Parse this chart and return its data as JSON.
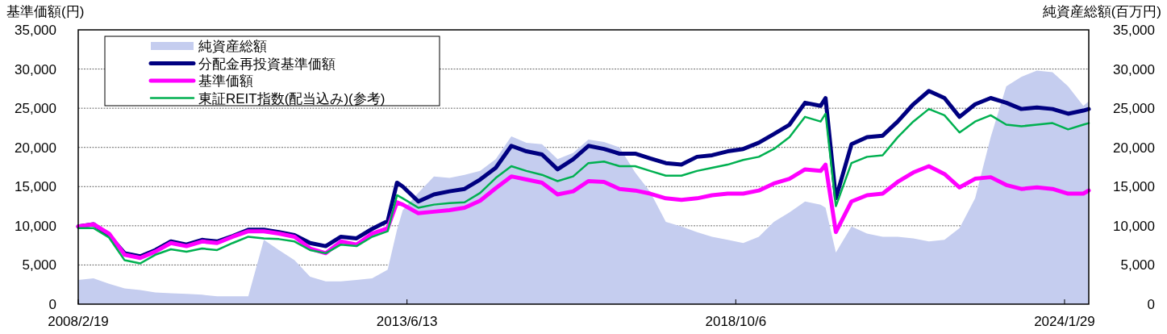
{
  "chart_data": {
    "type": "line",
    "ylabel": "基準価額(円)",
    "y2label": "純資産総額(百万円)",
    "x": [
      "2008-02-19",
      "2008-05-19",
      "2008-08-19",
      "2008-11-19",
      "2009-02-19",
      "2009-05-19",
      "2009-08-19",
      "2009-11-19",
      "2010-02-19",
      "2010-05-19",
      "2010-08-19",
      "2010-11-19",
      "2011-02-19",
      "2011-05-19",
      "2011-08-19",
      "2011-11-19",
      "2012-02-19",
      "2012-05-19",
      "2012-08-19",
      "2012-11-19",
      "2013-02-19",
      "2013-04-15",
      "2013-05-19",
      "2013-08-19",
      "2013-11-19",
      "2014-02-19",
      "2014-05-19",
      "2014-08-19",
      "2014-11-19",
      "2015-02-19",
      "2015-05-19",
      "2015-08-19",
      "2015-11-19",
      "2016-02-19",
      "2016-05-19",
      "2016-08-19",
      "2016-11-19",
      "2017-02-19",
      "2017-05-19",
      "2017-08-19",
      "2017-11-19",
      "2018-02-19",
      "2018-05-19",
      "2018-08-19",
      "2018-11-19",
      "2019-02-19",
      "2019-05-19",
      "2019-08-19",
      "2019-11-19",
      "2020-02-19",
      "2020-03-19",
      "2020-05-19",
      "2020-08-19",
      "2020-11-19",
      "2021-02-19",
      "2021-05-19",
      "2021-08-19",
      "2021-11-19",
      "2022-02-19",
      "2022-05-19",
      "2022-08-19",
      "2022-11-19",
      "2023-02-19",
      "2023-05-19",
      "2023-08-19",
      "2023-11-19",
      "2024-02-19",
      "2024-05-19",
      "2024-06-20"
    ],
    "series": [
      {
        "name": "純資産総額",
        "type": "area",
        "axis": "y2",
        "color": "#c5cdef",
        "values": [
          3100,
          3300,
          2600,
          2000,
          1800,
          1500,
          1400,
          1300,
          1200,
          1000,
          1000,
          1000,
          8200,
          6900,
          5600,
          3500,
          2900,
          2900,
          3100,
          3300,
          4400,
          9500,
          12000,
          14200,
          16300,
          16100,
          16500,
          17000,
          18500,
          21400,
          20600,
          20400,
          18500,
          19300,
          21000,
          20700,
          20000,
          16800,
          14300,
          10500,
          9900,
          9200,
          8600,
          8200,
          7800,
          8600,
          10500,
          11700,
          13100,
          12700,
          12300,
          6600,
          9900,
          9000,
          8600,
          8600,
          8400,
          8000,
          8200,
          9700,
          13500,
          21300,
          27800,
          29000,
          29800,
          29600,
          27800,
          25300,
          25900
        ]
      },
      {
        "name": "分配金再投資基準価額",
        "color": "#000080",
        "values": [
          9900,
          10200,
          8800,
          6500,
          6100,
          6900,
          8000,
          7600,
          8200,
          8000,
          8700,
          9500,
          9500,
          9200,
          8800,
          7800,
          7400,
          8600,
          8400,
          9600,
          10600,
          15500,
          15000,
          13100,
          14000,
          14400,
          14700,
          15900,
          17400,
          20200,
          19500,
          19100,
          17200,
          18500,
          20200,
          19800,
          19200,
          19200,
          18600,
          18000,
          17800,
          18800,
          19000,
          19500,
          19800,
          20600,
          21700,
          22900,
          25700,
          25300,
          26300,
          13500,
          20400,
          21300,
          21500,
          23300,
          25500,
          27200,
          26300,
          23900,
          25500,
          26300,
          25700,
          24900,
          25100,
          24900,
          24300,
          24700,
          24900
        ]
      },
      {
        "name": "基準価額",
        "color": "#ff00ff",
        "values": [
          9900,
          10200,
          9000,
          6300,
          5900,
          6700,
          7800,
          7400,
          8000,
          7800,
          8600,
          9300,
          9300,
          9000,
          8600,
          7100,
          6500,
          8000,
          7600,
          9000,
          9700,
          13000,
          12700,
          11600,
          11800,
          12000,
          12300,
          13200,
          14800,
          16300,
          15900,
          15500,
          14000,
          14400,
          15700,
          15600,
          14700,
          14500,
          14100,
          13500,
          13300,
          13500,
          13900,
          14100,
          14100,
          14500,
          15400,
          16000,
          17200,
          17000,
          17800,
          9200,
          13100,
          13900,
          14100,
          15600,
          16800,
          17600,
          16600,
          14900,
          16000,
          16200,
          15200,
          14700,
          14900,
          14700,
          14100,
          14100,
          14500
        ]
      },
      {
        "name": "東証REIT指数(配当込み)(参考)",
        "color": "#00b050",
        "values": [
          9700,
          9700,
          8500,
          5600,
          5200,
          6300,
          7000,
          6700,
          7100,
          6900,
          7800,
          8600,
          8400,
          8300,
          8000,
          6900,
          6500,
          7600,
          7400,
          8600,
          9300,
          13900,
          13500,
          12300,
          12700,
          12900,
          13000,
          14200,
          16100,
          17600,
          17000,
          16500,
          15700,
          16300,
          18000,
          18200,
          17600,
          17600,
          17000,
          16400,
          16400,
          17000,
          17400,
          17800,
          18400,
          18800,
          19800,
          21300,
          23900,
          23300,
          24300,
          12500,
          18000,
          18800,
          19000,
          21300,
          23300,
          24900,
          24100,
          21900,
          23300,
          24100,
          22900,
          22700,
          22900,
          23100,
          22300,
          22900,
          23100
        ]
      }
    ],
    "xlim": [
      "2008-02-19",
      "2024-06-20"
    ],
    "xticks": [
      {
        "value": "2008-02-19",
        "label": "2008/2/19"
      },
      {
        "value": "2013-06-13",
        "label": "2013/6/13"
      },
      {
        "value": "2018-10-06",
        "label": "2018/10/6"
      },
      {
        "value": "2024-01-29",
        "label": "2024/1/29"
      }
    ],
    "ylim": [
      0,
      35000
    ],
    "yticks": [
      0,
      {
        "value": 5000,
        "label": "5,000"
      },
      {
        "value": 10000,
        "label": "10,000"
      },
      {
        "value": 15000,
        "label": "15,000"
      },
      {
        "value": 20000,
        "label": "20,000"
      },
      {
        "value": 25000,
        "label": "25,000"
      },
      {
        "value": 30000,
        "label": "30,000"
      },
      {
        "value": 35000,
        "label": "35,000"
      }
    ],
    "y2lim": [
      0,
      35000
    ],
    "y2ticks": [
      0,
      {
        "value": 5000,
        "label": "5,000"
      },
      {
        "value": 10000,
        "label": "10,000"
      },
      {
        "value": 15000,
        "label": "15,000"
      },
      {
        "value": 20000,
        "label": "20,000"
      },
      {
        "value": 25000,
        "label": "25,000"
      },
      {
        "value": 30000,
        "label": "30,000"
      },
      {
        "value": 35000,
        "label": "35,000"
      }
    ],
    "grid": "y",
    "legend": "top left"
  }
}
